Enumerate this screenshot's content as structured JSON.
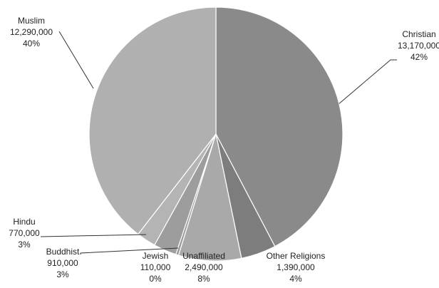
{
  "chart_data": {
    "type": "pie",
    "title": "",
    "slices": [
      {
        "label": "Christian",
        "value": 13170000,
        "value_text": "13,170,000",
        "percent_text": "42%",
        "color": "#8a8a8a"
      },
      {
        "label": "Other Religions",
        "value": 1390000,
        "value_text": "1,390,000",
        "percent_text": "4%",
        "color": "#7d7d7d"
      },
      {
        "label": "Unaffiliated",
        "value": 2490000,
        "value_text": "2,490,000",
        "percent_text": "8%",
        "color": "#a9a9a9"
      },
      {
        "label": "Jewish",
        "value": 110000,
        "value_text": "110,000",
        "percent_text": "0%",
        "color": "#9a9a9a"
      },
      {
        "label": "Buddhist",
        "value": 910000,
        "value_text": "910,000",
        "percent_text": "3%",
        "color": "#9d9d9d"
      },
      {
        "label": "Hindu",
        "value": 770000,
        "value_text": "770,000",
        "percent_text": "3%",
        "color": "#b4b4b4"
      },
      {
        "label": "Muslim",
        "value": 12290000,
        "value_text": "12,290,000",
        "percent_text": "40%",
        "color": "#b0b0b0"
      }
    ]
  }
}
